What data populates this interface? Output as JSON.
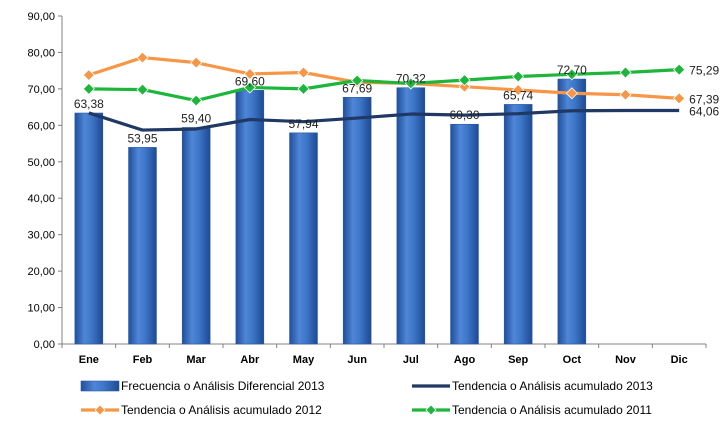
{
  "chart_data": {
    "type": "bar",
    "title": "",
    "xlabel": "",
    "ylabel": "",
    "ylim": [
      0,
      90
    ],
    "yticks": [
      "0,00",
      "10,00",
      "20,00",
      "30,00",
      "40,00",
      "50,00",
      "60,00",
      "70,00",
      "80,00",
      "90,00"
    ],
    "ytick_values": [
      0,
      10,
      20,
      30,
      40,
      50,
      60,
      70,
      80,
      90
    ],
    "categories": [
      "Ene",
      "Feb",
      "Mar",
      "Abr",
      "May",
      "Jun",
      "Jul",
      "Ago",
      "Sep",
      "Oct",
      "Nov",
      "Dic"
    ],
    "grid": false,
    "legend_position": "bottom",
    "series": [
      {
        "name": "Frecuencia o Análisis Diferencial 2013",
        "kind": "bar",
        "color": "#3a6fc4",
        "values": [
          63.38,
          53.95,
          59.4,
          69.6,
          57.94,
          67.69,
          70.32,
          60.3,
          65.74,
          72.7,
          null,
          null
        ],
        "labels": [
          "63,38",
          "53,95",
          "59,40",
          "69,60",
          "57,94",
          "67,69",
          "70,32",
          "60,30",
          "65,74",
          "72,70",
          "",
          ""
        ]
      },
      {
        "name": "Tendencia o Análisis acumulado 2013",
        "kind": "line",
        "color": "#1f3864",
        "values": [
          63.4,
          58.7,
          59.0,
          61.6,
          61.0,
          62.0,
          63.1,
          62.8,
          63.2,
          64.0,
          64.06,
          64.06
        ],
        "end_label": "64,06"
      },
      {
        "name": "Tendencia o Análisis acumulado 2012",
        "kind": "line",
        "color": "#f79646",
        "values": [
          73.8,
          78.6,
          77.2,
          74.1,
          74.5,
          71.8,
          71.5,
          70.6,
          69.7,
          68.8,
          68.4,
          67.39
        ],
        "end_label": "67,39"
      },
      {
        "name": "Tendencia o Análisis acumulado 2011",
        "kind": "line",
        "color": "#1db63b",
        "values": [
          70.0,
          69.8,
          66.8,
          70.4,
          70.0,
          72.3,
          71.5,
          72.4,
          73.4,
          74.0,
          74.5,
          75.29
        ],
        "end_label": "75,29"
      }
    ]
  }
}
